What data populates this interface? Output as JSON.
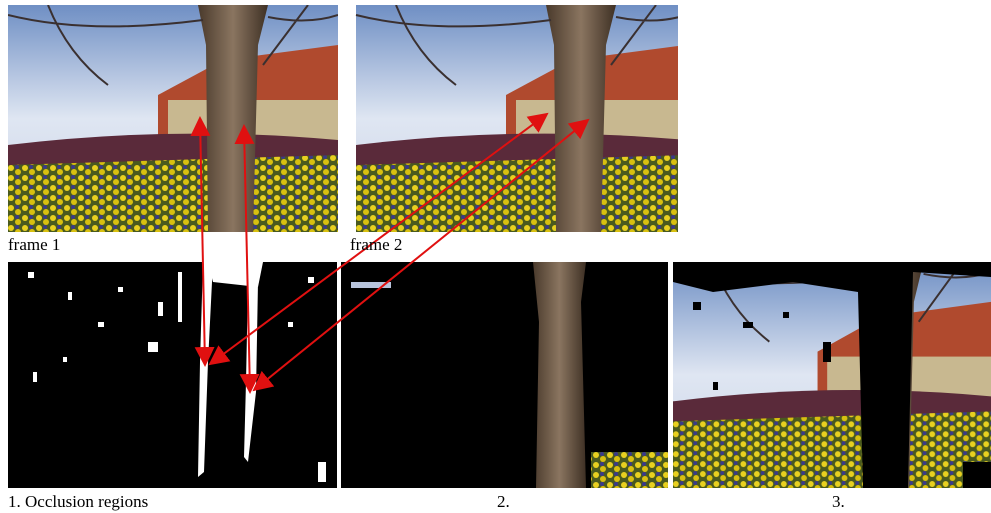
{
  "figure": {
    "captions": {
      "frame1": "frame 1",
      "frame2": "frame 2",
      "result1": "1. Occlusion regions",
      "result2": "2.",
      "result3": "3."
    }
  }
}
